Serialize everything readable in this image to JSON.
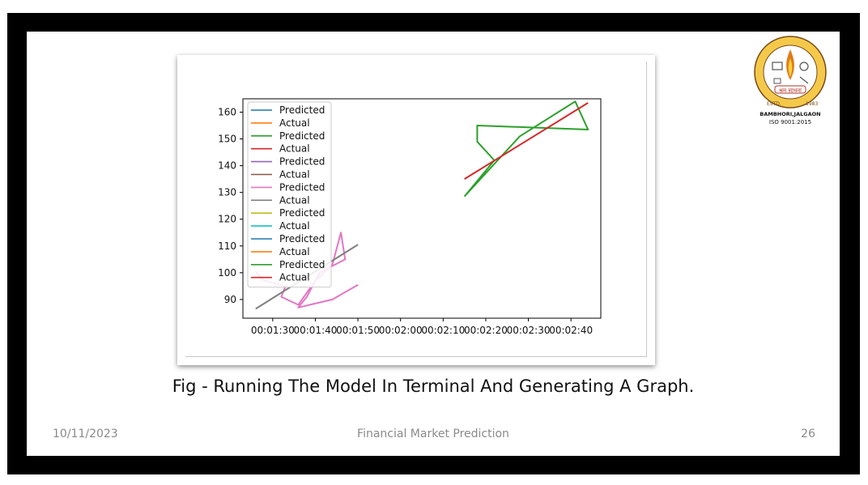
{
  "slide": {
    "caption": "Fig - Running The Model In Terminal And Generating A Graph.",
    "date": "10/11/2023",
    "footer_title": "Financial Market Prediction",
    "page_number": "26"
  },
  "logo": {
    "ring_text": "SHRAM SADHANA BOMBAY TRUST'S COLLEGE OF ENGINEERING AND TECHNOLOGY",
    "motto": "श्रम साधना",
    "estd": "ESTD.",
    "year": "1983",
    "location": "BAMBHORI,JALGAON",
    "iso": "ISO 9001:2015"
  },
  "colors": {
    "frame": "#000000",
    "tab_blue": "#1f77b4",
    "tab_orange": "#ff7f0e",
    "tab_green": "#2ca02c",
    "tab_red": "#d62728",
    "tab_purple": "#9467bd",
    "tab_brown": "#8c564b",
    "tab_pink": "#e377c2",
    "tab_gray": "#7f7f7f",
    "tab_olive": "#bcbd22",
    "tab_cyan": "#17becf"
  },
  "chart_data": {
    "type": "line",
    "title": "",
    "xlabel": "",
    "ylabel": "",
    "x_axis_type": "time",
    "xlim": [
      "00:01:23",
      "00:02:47"
    ],
    "ylim": [
      83,
      165
    ],
    "x_ticks": [
      "00:01:30",
      "00:01:40",
      "00:01:50",
      "00:02:00",
      "00:02:10",
      "00:02:20",
      "00:02:30",
      "00:02:40"
    ],
    "y_ticks": [
      90,
      100,
      110,
      120,
      130,
      140,
      150,
      160
    ],
    "grid": false,
    "legend_position": "top-left",
    "legend": [
      "Predicted",
      "Actual",
      "Predicted",
      "Actual",
      "Predicted",
      "Actual",
      "Predicted",
      "Actual",
      "Predicted",
      "Actual",
      "Predicted",
      "Actual",
      "Predicted",
      "Actual"
    ],
    "series": [
      {
        "name": "Predicted",
        "color": "#1f77b4",
        "points": []
      },
      {
        "name": "Actual",
        "color": "#ff7f0e",
        "points": []
      },
      {
        "name": "Predicted",
        "color": "#2ca02c",
        "points": []
      },
      {
        "name": "Actual",
        "color": "#d62728",
        "points": []
      },
      {
        "name": "Predicted",
        "color": "#9467bd",
        "points": []
      },
      {
        "name": "Actual",
        "color": "#8c564b",
        "points": []
      },
      {
        "name": "Predicted",
        "color": "#e377c2",
        "points": [
          [
            "00:01:26",
            100.5
          ],
          [
            "00:01:28",
            97
          ],
          [
            "00:01:33",
            95
          ],
          [
            "00:01:32",
            91
          ],
          [
            "00:01:36",
            88
          ],
          [
            "00:01:40",
            97
          ],
          [
            "00:01:44",
            103
          ],
          [
            "00:01:46",
            115
          ],
          [
            "00:01:47",
            105
          ],
          [
            "00:01:41",
            100
          ],
          [
            "00:01:38",
            91
          ],
          [
            "00:01:36",
            87
          ],
          [
            "00:01:44",
            90
          ],
          [
            "00:01:50",
            95.5
          ]
        ]
      },
      {
        "name": "Actual",
        "color": "#7f7f7f",
        "points": [
          [
            "00:01:26",
            86.5
          ],
          [
            "00:01:50",
            110.5
          ]
        ]
      },
      {
        "name": "Predicted",
        "color": "#bcbd22",
        "points": []
      },
      {
        "name": "Actual",
        "color": "#17becf",
        "points": []
      },
      {
        "name": "Predicted",
        "color": "#1f77b4",
        "points": []
      },
      {
        "name": "Actual",
        "color": "#ff7f0e",
        "points": []
      },
      {
        "name": "Predicted",
        "color": "#2ca02c",
        "points": [
          [
            "00:02:15",
            128.5
          ],
          [
            "00:02:22",
            142
          ],
          [
            "00:02:18",
            149
          ],
          [
            "00:02:18",
            155
          ],
          [
            "00:02:44",
            153.5
          ],
          [
            "00:02:41",
            164
          ],
          [
            "00:02:28",
            151
          ],
          [
            "00:02:15",
            128.5
          ]
        ]
      },
      {
        "name": "Actual",
        "color": "#d62728",
        "points": [
          [
            "00:02:15",
            135
          ],
          [
            "00:02:44",
            163.5
          ]
        ]
      }
    ]
  }
}
